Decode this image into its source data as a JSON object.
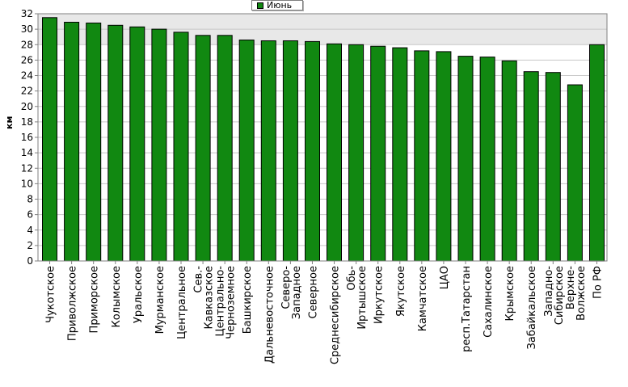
{
  "chart_data": {
    "type": "bar",
    "title": "",
    "xlabel": "",
    "ylabel": "км",
    "ylim": [
      0,
      32
    ],
    "ytick_step": 2,
    "grid": true,
    "legend_position": "top-center",
    "series": [
      {
        "name": "Июнь",
        "color": "#118811",
        "values": [
          31.5,
          30.9,
          30.8,
          30.5,
          30.3,
          30.0,
          29.6,
          29.2,
          29.2,
          28.6,
          28.5,
          28.5,
          28.4,
          28.1,
          28.0,
          27.8,
          27.6,
          27.2,
          27.1,
          26.5,
          26.4,
          25.9,
          24.5,
          24.4,
          22.8,
          28.0
        ]
      }
    ],
    "categories": [
      "Чукотское",
      "Приволжское",
      "Приморское",
      "Колымское",
      "Уральское",
      "Мурманское",
      "Центральное",
      "Сев.-Кавказское",
      "Центрально-Черноземное",
      "Башкирское",
      "Дальневосточное",
      "Северо-Западное",
      "Северное",
      "Среднесибирское",
      "Обь-Иртышское",
      "Иркутское",
      "Якутское",
      "Камчатское",
      "ЦАО",
      "респ.Татарстан",
      "Сахалинское",
      "Крымское",
      "Забайкальское",
      "Западно-Сибирское",
      "Верхне-Волжское",
      "По РФ"
    ],
    "category_lines": [
      [
        "Чукотское"
      ],
      [
        "Приволжское"
      ],
      [
        "Приморское"
      ],
      [
        "Колымское"
      ],
      [
        "Уральское"
      ],
      [
        "Мурманское"
      ],
      [
        "Центральное"
      ],
      [
        "Сев.-",
        "Кавказское"
      ],
      [
        "Центрально-",
        "Черноземное"
      ],
      [
        "Башкирское"
      ],
      [
        "Дальневосточное"
      ],
      [
        "Северо-",
        "Западное"
      ],
      [
        "Северное"
      ],
      [
        "Среднесибирское"
      ],
      [
        "Обь-",
        "Иртышское"
      ],
      [
        "Иркутское"
      ],
      [
        "Якутское"
      ],
      [
        "Камчатское"
      ],
      [
        "ЦАО"
      ],
      [
        "респ.Татарстан"
      ],
      [
        "Сахалинское"
      ],
      [
        "Крымское"
      ],
      [
        "Забайкальское"
      ],
      [
        "Западно-",
        "Сибирское"
      ],
      [
        "Верхне-",
        "Волжское"
      ],
      [
        "По РФ"
      ]
    ]
  }
}
